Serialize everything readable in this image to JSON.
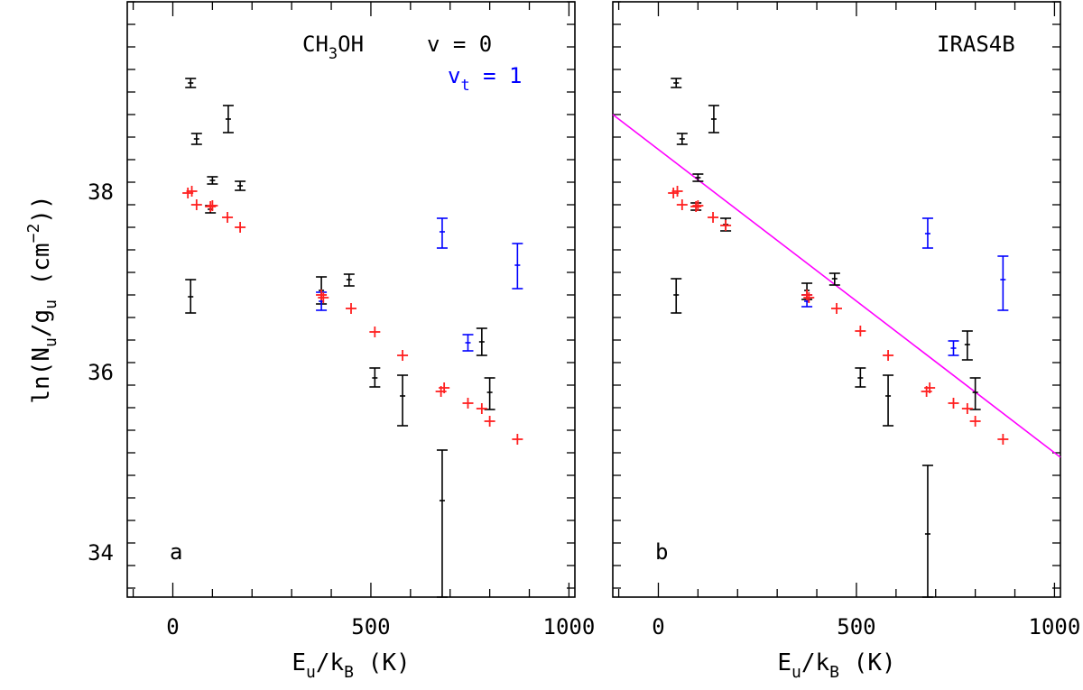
{
  "colors": {
    "v0": "#000000",
    "vt1": "#0000ff",
    "model": "#ff2020",
    "fit": "#ff00ff",
    "axis": "#000000"
  },
  "chart_data": [
    {
      "id": "a",
      "type": "scatter",
      "panel_label": "a",
      "molecule": {
        "base": "CH",
        "sub": "3",
        "tail": "OH"
      },
      "legend": [
        {
          "name": "v = 0",
          "color": "#000000"
        },
        {
          "name": "vt = 1",
          "prefix": "v",
          "sub": "t",
          "suffix": " = 1",
          "color": "#0000ff"
        }
      ],
      "xlabel": {
        "base": "E",
        "sub1": "u",
        "mid": "/k",
        "sub2": "B",
        "tail": " (K)"
      },
      "ylabel": {
        "pre": "ln(N",
        "sub1": "u",
        "mid": "/g",
        "sub2": "u",
        "post1": " (cm",
        "sup": "−2",
        "post2": "))"
      },
      "xlim": [
        -115,
        1015
      ],
      "ylim": [
        33.5,
        40.1
      ],
      "xticks": [
        0,
        500,
        1000
      ],
      "xtick_labels": [
        "0",
        "500",
        "1000"
      ],
      "yticks": [
        34,
        36,
        38
      ],
      "ytick_labels": [
        "34",
        "36",
        "38"
      ],
      "series": [
        {
          "name": "v = 0",
          "color": "#000000",
          "points": [
            {
              "x": 45,
              "y": 39.2,
              "lo": 39.15,
              "hi": 39.25
            },
            {
              "x": 60,
              "y": 38.58,
              "lo": 38.52,
              "hi": 38.64
            },
            {
              "x": 45,
              "y": 36.83,
              "lo": 36.65,
              "hi": 37.02
            },
            {
              "x": 100,
              "y": 38.12,
              "lo": 38.08,
              "hi": 38.16
            },
            {
              "x": 95,
              "y": 37.8,
              "lo": 37.76,
              "hi": 37.84
            },
            {
              "x": 140,
              "y": 38.8,
              "lo": 38.65,
              "hi": 38.95
            },
            {
              "x": 170,
              "y": 38.06,
              "lo": 38.01,
              "hi": 38.11
            },
            {
              "x": 375,
              "y": 36.9,
              "lo": 36.75,
              "hi": 37.05
            },
            {
              "x": 445,
              "y": 37.02,
              "lo": 36.95,
              "hi": 37.08
            },
            {
              "x": 510,
              "y": 35.93,
              "lo": 35.83,
              "hi": 36.04
            },
            {
              "x": 580,
              "y": 35.73,
              "lo": 35.4,
              "hi": 35.96
            },
            {
              "x": 680,
              "y": 34.57,
              "lo": 33.5,
              "hi": 35.13
            },
            {
              "x": 780,
              "y": 36.33,
              "lo": 36.18,
              "hi": 36.48
            },
            {
              "x": 800,
              "y": 35.77,
              "lo": 35.58,
              "hi": 35.93
            }
          ]
        },
        {
          "name": "vt = 1",
          "color": "#0000ff",
          "points": [
            {
              "x": 375,
              "y": 36.78,
              "lo": 36.68,
              "hi": 36.88
            },
            {
              "x": 680,
              "y": 37.55,
              "lo": 37.37,
              "hi": 37.7
            },
            {
              "x": 745,
              "y": 36.32,
              "lo": 36.23,
              "hi": 36.41
            },
            {
              "x": 870,
              "y": 37.18,
              "lo": 36.92,
              "hi": 37.42
            }
          ]
        },
        {
          "name": "model",
          "color": "#ff2020",
          "points": [
            {
              "x": 38,
              "y": 37.98
            },
            {
              "x": 48,
              "y": 38.0
            },
            {
              "x": 60,
              "y": 37.85
            },
            {
              "x": 95,
              "y": 37.83
            },
            {
              "x": 100,
              "y": 37.84
            },
            {
              "x": 138,
              "y": 37.71
            },
            {
              "x": 170,
              "y": 37.6
            },
            {
              "x": 375,
              "y": 36.85
            },
            {
              "x": 380,
              "y": 36.82
            },
            {
              "x": 450,
              "y": 36.7
            },
            {
              "x": 510,
              "y": 36.44
            },
            {
              "x": 580,
              "y": 36.18
            },
            {
              "x": 677,
              "y": 35.78
            },
            {
              "x": 685,
              "y": 35.82
            },
            {
              "x": 745,
              "y": 35.65
            },
            {
              "x": 780,
              "y": 35.59
            },
            {
              "x": 800,
              "y": 35.45
            },
            {
              "x": 870,
              "y": 35.25
            }
          ]
        }
      ]
    },
    {
      "id": "b",
      "type": "scatter",
      "panel_label": "b",
      "source_name": "IRAS4B",
      "xlabel": {
        "base": "E",
        "sub1": "u",
        "mid": "/k",
        "sub2": "B",
        "tail": " (K)"
      },
      "xlim": [
        -115,
        1015
      ],
      "ylim": [
        33.5,
        40.1
      ],
      "xticks": [
        0,
        500,
        1000
      ],
      "xtick_labels": [
        "0",
        "500",
        "1000"
      ],
      "yticks": [
        34,
        36,
        38
      ],
      "fit_line": {
        "x": [
          -115,
          1015
        ],
        "y": [
          38.85,
          35.05
        ]
      },
      "series": [
        {
          "name": "v = 0",
          "color": "#000000",
          "points": [
            {
              "x": 45,
              "y": 39.2,
              "lo": 39.15,
              "hi": 39.25
            },
            {
              "x": 60,
              "y": 38.58,
              "lo": 38.52,
              "hi": 38.64
            },
            {
              "x": 45,
              "y": 36.85,
              "lo": 36.65,
              "hi": 37.03
            },
            {
              "x": 100,
              "y": 38.15,
              "lo": 38.11,
              "hi": 38.19
            },
            {
              "x": 95,
              "y": 37.83,
              "lo": 37.79,
              "hi": 37.87
            },
            {
              "x": 140,
              "y": 38.8,
              "lo": 38.65,
              "hi": 38.95
            },
            {
              "x": 170,
              "y": 37.63,
              "lo": 37.56,
              "hi": 37.7
            },
            {
              "x": 375,
              "y": 36.9,
              "lo": 36.8,
              "hi": 36.98
            },
            {
              "x": 445,
              "y": 37.03,
              "lo": 36.96,
              "hi": 37.09
            },
            {
              "x": 510,
              "y": 35.93,
              "lo": 35.83,
              "hi": 36.04
            },
            {
              "x": 580,
              "y": 35.73,
              "lo": 35.4,
              "hi": 35.96
            },
            {
              "x": 680,
              "y": 34.2,
              "lo": 33.5,
              "hi": 34.96
            },
            {
              "x": 780,
              "y": 36.3,
              "lo": 36.13,
              "hi": 36.45
            },
            {
              "x": 800,
              "y": 35.77,
              "lo": 35.58,
              "hi": 35.93
            }
          ]
        },
        {
          "name": "vt = 1",
          "color": "#0000ff",
          "points": [
            {
              "x": 375,
              "y": 36.78,
              "lo": 36.72,
              "hi": 36.85
            },
            {
              "x": 680,
              "y": 37.53,
              "lo": 37.37,
              "hi": 37.7
            },
            {
              "x": 745,
              "y": 36.26,
              "lo": 36.18,
              "hi": 36.34
            },
            {
              "x": 870,
              "y": 37.02,
              "lo": 36.68,
              "hi": 37.28
            }
          ]
        },
        {
          "name": "model",
          "color": "#ff2020",
          "points": [
            {
              "x": 38,
              "y": 37.98
            },
            {
              "x": 48,
              "y": 38.0
            },
            {
              "x": 60,
              "y": 37.85
            },
            {
              "x": 95,
              "y": 37.83
            },
            {
              "x": 100,
              "y": 37.84
            },
            {
              "x": 138,
              "y": 37.71
            },
            {
              "x": 170,
              "y": 37.62
            },
            {
              "x": 375,
              "y": 36.85
            },
            {
              "x": 380,
              "y": 36.82
            },
            {
              "x": 450,
              "y": 36.7
            },
            {
              "x": 510,
              "y": 36.45
            },
            {
              "x": 580,
              "y": 36.18
            },
            {
              "x": 677,
              "y": 35.78
            },
            {
              "x": 685,
              "y": 35.82
            },
            {
              "x": 745,
              "y": 35.65
            },
            {
              "x": 780,
              "y": 35.59
            },
            {
              "x": 800,
              "y": 35.45
            },
            {
              "x": 870,
              "y": 35.25
            }
          ]
        }
      ]
    }
  ]
}
